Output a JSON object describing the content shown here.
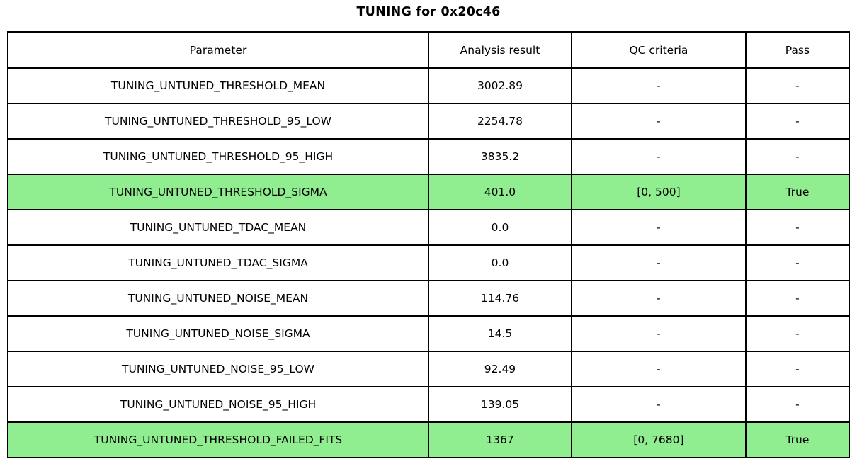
{
  "chart_data": {
    "type": "table",
    "title": "TUNING for 0x20c46",
    "columns": [
      "Parameter",
      "Analysis result",
      "QC criteria",
      "Pass"
    ],
    "rows": [
      [
        "TUNING_UNTUNED_THRESHOLD_MEAN",
        "3002.89",
        "-",
        "-"
      ],
      [
        "TUNING_UNTUNED_THRESHOLD_95_LOW",
        "2254.78",
        "-",
        "-"
      ],
      [
        "TUNING_UNTUNED_THRESHOLD_95_HIGH",
        "3835.2",
        "-",
        "-"
      ],
      [
        "TUNING_UNTUNED_THRESHOLD_SIGMA",
        "401.0",
        "[0, 500]",
        "True"
      ],
      [
        "TUNING_UNTUNED_TDAC_MEAN",
        "0.0",
        "-",
        "-"
      ],
      [
        "TUNING_UNTUNED_TDAC_SIGMA",
        "0.0",
        "-",
        "-"
      ],
      [
        "TUNING_UNTUNED_NOISE_MEAN",
        "114.76",
        "-",
        "-"
      ],
      [
        "TUNING_UNTUNED_NOISE_SIGMA",
        "14.5",
        "-",
        "-"
      ],
      [
        "TUNING_UNTUNED_NOISE_95_LOW",
        "92.49",
        "-",
        "-"
      ],
      [
        "TUNING_UNTUNED_NOISE_95_HIGH",
        "139.05",
        "-",
        "-"
      ],
      [
        "TUNING_UNTUNED_THRESHOLD_FAILED_FITS",
        "1367",
        "[0, 7680]",
        "True"
      ]
    ],
    "highlighted_rows": [
      3,
      10
    ],
    "highlight_color": "#90ee90",
    "layout": {
      "border_color": "#000000",
      "background_color": "#ffffff",
      "legend": "off",
      "grid": "table-borders"
    }
  }
}
